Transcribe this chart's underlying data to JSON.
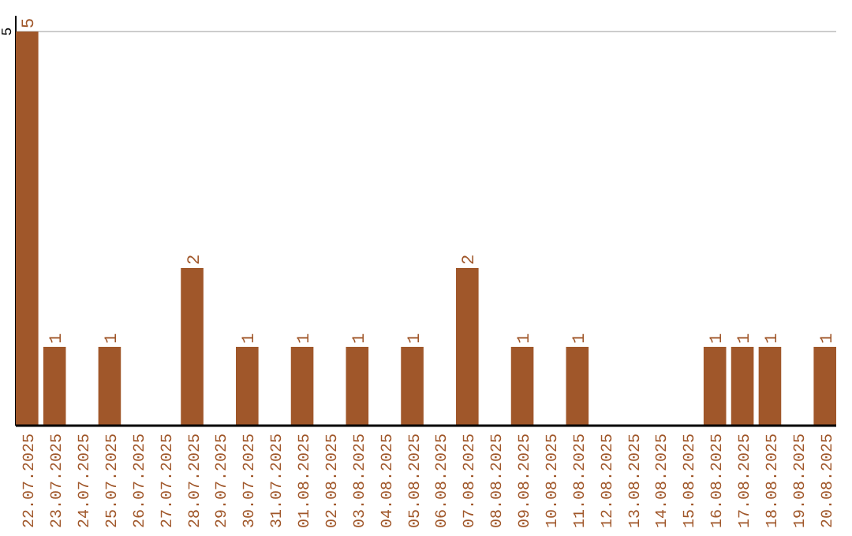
{
  "chart_data": {
    "type": "bar",
    "categories": [
      "22.07.2025",
      "23.07.2025",
      "24.07.2025",
      "25.07.2025",
      "26.07.2025",
      "27.07.2025",
      "28.07.2025",
      "29.07.2025",
      "30.07.2025",
      "31.07.2025",
      "01.08.2025",
      "02.08.2025",
      "03.08.2025",
      "04.08.2025",
      "05.08.2025",
      "06.08.2025",
      "07.08.2025",
      "08.08.2025",
      "09.08.2025",
      "10.08.2025",
      "11.08.2025",
      "12.08.2025",
      "13.08.2025",
      "14.08.2025",
      "15.08.2025",
      "16.08.2025",
      "17.08.2025",
      "18.08.2025",
      "19.08.2025",
      "20.08.2025"
    ],
    "values": [
      5,
      1,
      0,
      1,
      0,
      0,
      2,
      0,
      1,
      0,
      1,
      0,
      1,
      0,
      1,
      0,
      2,
      0,
      1,
      0,
      1,
      0,
      0,
      0,
      0,
      1,
      1,
      1,
      0,
      1
    ],
    "value_labels": [
      "5",
      "1",
      null,
      "1",
      null,
      null,
      "2",
      null,
      "1",
      null,
      "1",
      null,
      "1",
      null,
      "1",
      null,
      "2",
      null,
      "1",
      null,
      "1",
      null,
      null,
      null,
      null,
      "1",
      "1",
      "1",
      null,
      "1"
    ],
    "color": "#a0572a",
    "ylim": [
      0,
      5
    ],
    "yticks": [
      5
    ],
    "ref_lines": [
      {
        "axis": "y",
        "value": 5,
        "color": "#cccccc"
      }
    ]
  }
}
